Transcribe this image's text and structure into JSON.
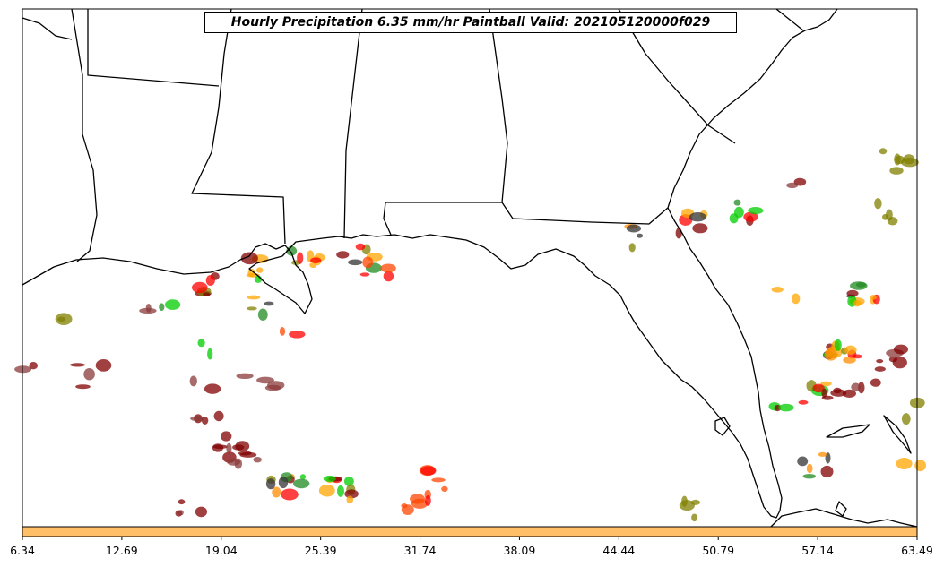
{
  "title": "Hourly Precipitation 6.35 mm/hr Paintball Valid: 202105120000f029",
  "colorbar": {
    "tick_labels": [
      "6.34",
      "12.69",
      "19.04",
      "25.39",
      "31.74",
      "38.09",
      "44.44",
      "50.79",
      "57.14",
      "63.49"
    ],
    "fill_color": "#ffbf66"
  },
  "colors": {
    "coastline": "#000000",
    "member_palette": [
      "#800000",
      "#ff0000",
      "#ff8c00",
      "#ffa500",
      "#00cc00",
      "#228b22",
      "#808000",
      "#333333",
      "#8b3a3a",
      "#ff4500"
    ]
  },
  "map": {
    "projection": "plate-carree",
    "region": "U.S. Gulf Coast and Gulf of Mexico",
    "features": [
      "state boundaries",
      "coastlines",
      "Florida peninsula",
      "Louisiana delta",
      "Cuba (partial)",
      "Bahamas (partial)"
    ]
  }
}
